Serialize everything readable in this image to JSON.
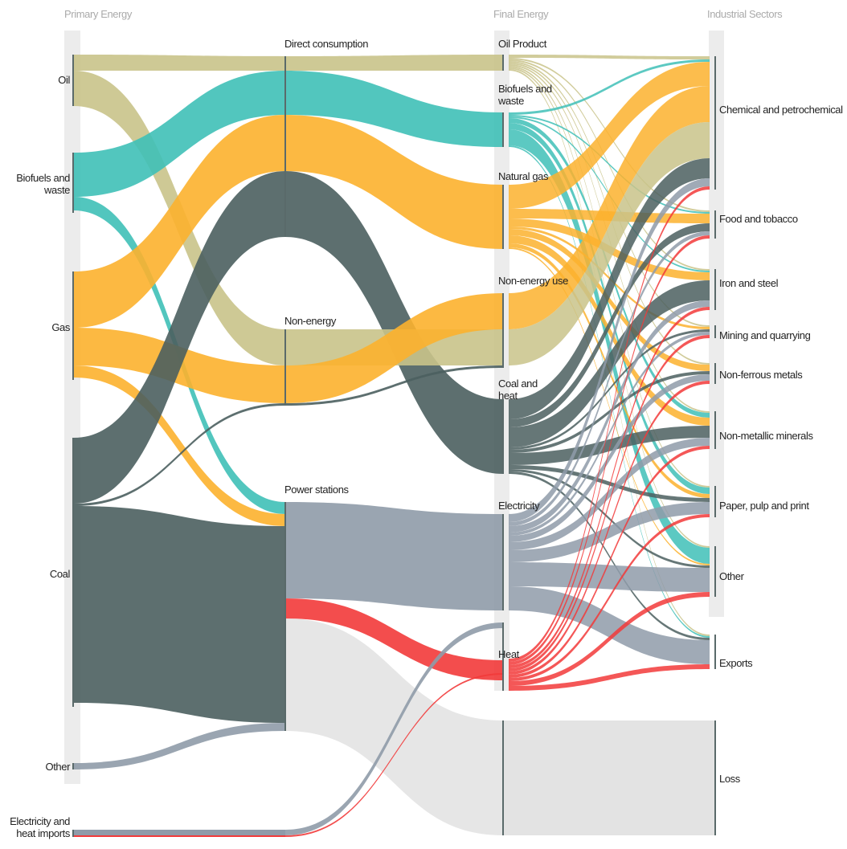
{
  "column_titles": [
    "Primary Energy",
    "Final Energy",
    "Industrial Sectors"
  ],
  "primary": [
    "Oil",
    "Biofuels and waste",
    "Gas",
    "Coal",
    "Other",
    "Electricity and heat imports"
  ],
  "intermediate": [
    "Direct consumption",
    "Non-energy",
    "Power stations"
  ],
  "final": [
    "Oil Product",
    "Biofuels and waste",
    "Natural gas",
    "Non-energy use",
    "Coal and heat",
    "Electricity",
    "Heat"
  ],
  "sectors": [
    "Chemical and petrochemical",
    "Food and tobacco",
    "Iron and steel",
    "Mining and quarrying",
    "Non-ferrous metals",
    "Non-metallic minerals",
    "Paper, pulp and print",
    "Other",
    "Exports",
    "Loss"
  ]
}
